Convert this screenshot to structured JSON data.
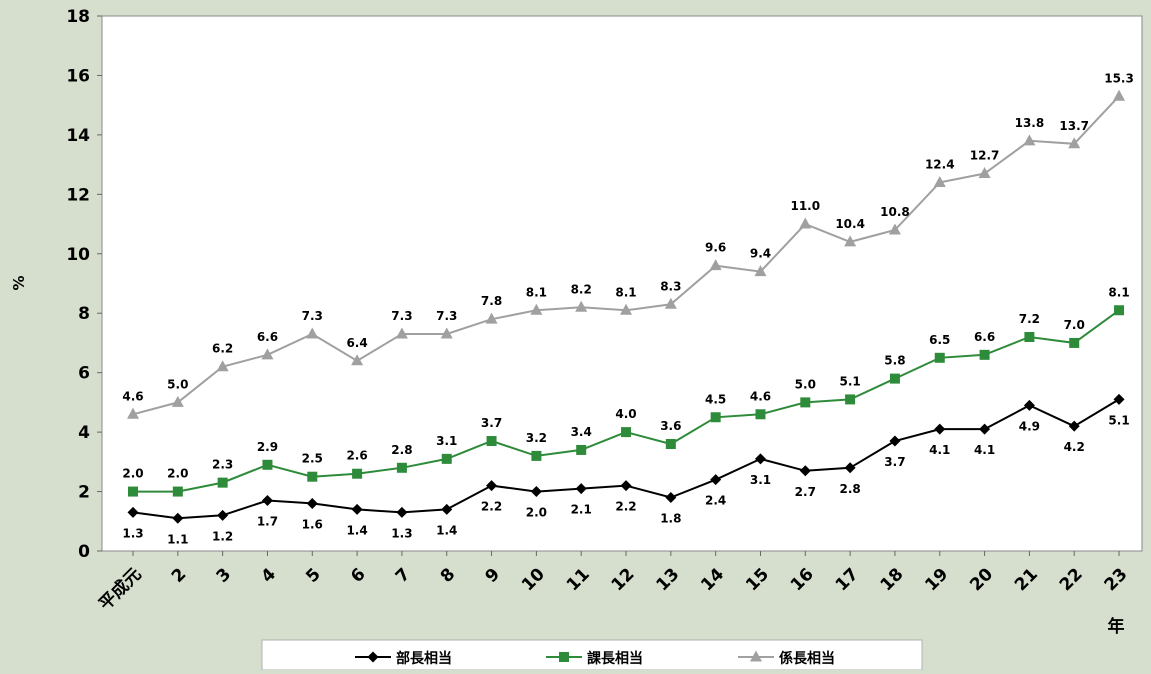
{
  "chart_data": {
    "type": "line",
    "title": "",
    "ylabel": "%",
    "xlabel": "年",
    "ylim": [
      0,
      18
    ],
    "yticks": [
      0,
      2,
      4,
      6,
      8,
      10,
      12,
      14,
      16,
      18
    ],
    "categories": [
      "平成元",
      "2",
      "3",
      "4",
      "5",
      "6",
      "7",
      "8",
      "9",
      "10",
      "11",
      "12",
      "13",
      "14",
      "15",
      "16",
      "17",
      "18",
      "19",
      "20",
      "21",
      "22",
      "23"
    ],
    "grid": false,
    "legend_position": "bottom",
    "series": [
      {
        "name": "部長相当",
        "color": "#000000",
        "marker": "diamond",
        "label_position": "below",
        "values": [
          1.3,
          1.1,
          1.2,
          1.7,
          1.6,
          1.4,
          1.3,
          1.4,
          2.2,
          2.0,
          2.1,
          2.2,
          1.8,
          2.4,
          3.1,
          2.7,
          2.8,
          3.7,
          4.1,
          4.1,
          4.9,
          4.2,
          5.1
        ],
        "labels": [
          "1.3",
          "1.1",
          "1.2",
          "1.7",
          "1.6",
          "1.4",
          "1.3",
          "1.4",
          "2.2",
          "2.0",
          "2.1",
          "2.2",
          "1.8",
          "2.4",
          "3.1",
          "2.7",
          "2.8",
          "3.7",
          "4.1",
          "4.1",
          "4.9",
          "4.2",
          "5.1"
        ]
      },
      {
        "name": "課長相当",
        "color": "#2e8b3a",
        "marker": "square",
        "label_position": "above",
        "values": [
          2.0,
          2.0,
          2.3,
          2.9,
          2.5,
          2.6,
          2.8,
          3.1,
          3.7,
          3.2,
          3.4,
          4.0,
          3.6,
          4.5,
          4.6,
          5.0,
          5.1,
          5.8,
          6.5,
          6.6,
          7.2,
          7.0,
          8.1
        ],
        "labels": [
          "2.0",
          "2.0",
          "2.3",
          "2.9",
          "2.5",
          "2.6",
          "2.8",
          "3.1",
          "3.7",
          "3.2",
          "3.4",
          "4.0",
          "3.6",
          "4.5",
          "4.6",
          "5.0",
          "5.1",
          "5.8",
          "6.5",
          "6.6",
          "7.2",
          "7.0",
          "8.1"
        ]
      },
      {
        "name": "係長相当",
        "color": "#a0a0a0",
        "marker": "triangle",
        "label_position": "above",
        "values": [
          4.6,
          5.0,
          6.2,
          6.6,
          7.3,
          6.4,
          7.3,
          7.3,
          7.8,
          8.1,
          8.2,
          8.1,
          8.3,
          9.6,
          9.4,
          11.0,
          10.4,
          10.8,
          12.4,
          12.7,
          13.8,
          13.7,
          15.3
        ],
        "labels": [
          "4.6",
          "5.0",
          "6.2",
          "6.6",
          "7.3",
          "6.4",
          "7.3",
          "7.3",
          "7.8",
          "8.1",
          "8.2",
          "8.1",
          "8.3",
          "9.6",
          "9.4",
          "11.0",
          "10.4",
          "10.8",
          "12.4",
          "12.7",
          "13.8",
          "13.7",
          "15.3"
        ]
      }
    ]
  }
}
